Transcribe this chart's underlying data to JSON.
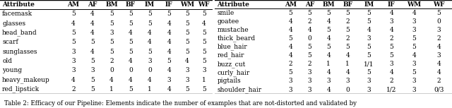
{
  "table1": {
    "columns": [
      "Attribute",
      "AM",
      "AF",
      "BM",
      "BF",
      "IM",
      "IF",
      "WM",
      "WF"
    ],
    "rows": [
      [
        "facemask",
        "5",
        "4",
        "5",
        "5",
        "5",
        "5",
        "5",
        "5"
      ],
      [
        "glasses",
        "4",
        "4",
        "5",
        "5",
        "5",
        "4",
        "5",
        "4"
      ],
      [
        "head_band",
        "5",
        "4",
        "3",
        "4",
        "4",
        "4",
        "5",
        "5"
      ],
      [
        "scarf",
        "5",
        "5",
        "5",
        "5",
        "4",
        "4",
        "5",
        "5"
      ],
      [
        "sunglasses",
        "3",
        "4",
        "5",
        "5",
        "5",
        "4",
        "5",
        "5"
      ],
      [
        "old",
        "3",
        "5",
        "2",
        "4",
        "3",
        "5",
        "4",
        "5"
      ],
      [
        "young",
        "3",
        "3",
        "0",
        "0",
        "0",
        "4",
        "3",
        "3"
      ],
      [
        "heavy_makeup",
        "4",
        "5",
        "4",
        "4",
        "4",
        "3",
        "3",
        "1"
      ],
      [
        "red_lipstick",
        "2",
        "5",
        "1",
        "5",
        "1",
        "4",
        "5",
        "5"
      ]
    ]
  },
  "table2": {
    "columns": [
      "Attribute",
      "AM",
      "AF",
      "BM",
      "BF",
      "IM",
      "IF",
      "WM",
      "WF"
    ],
    "rows": [
      [
        "smile",
        "5",
        "5",
        "5",
        "5",
        "5",
        "4",
        "4",
        "5"
      ],
      [
        "goatee",
        "4",
        "2",
        "4",
        "2",
        "5",
        "3",
        "3",
        "0"
      ],
      [
        "mustache",
        "4",
        "4",
        "5",
        "5",
        "4",
        "4",
        "3",
        "3"
      ],
      [
        "thick_beard",
        "5",
        "0",
        "4",
        "2",
        "3",
        "2",
        "5",
        "2"
      ],
      [
        "blue_hair",
        "4",
        "5",
        "5",
        "5",
        "5",
        "5",
        "5",
        "4"
      ],
      [
        "red_hair",
        "4",
        "5",
        "4",
        "4",
        "5",
        "5",
        "4",
        "3"
      ],
      [
        "buzz_cut",
        "2",
        "2",
        "1",
        "1",
        "1/1",
        "3",
        "3",
        "4"
      ],
      [
        "curly_hair",
        "5",
        "3",
        "4",
        "4",
        "5",
        "4",
        "5",
        "4"
      ],
      [
        "pigtails",
        "3",
        "3",
        "3",
        "3",
        "3",
        "2",
        "3",
        "2"
      ],
      [
        "shoulder_hair",
        "3",
        "3",
        "4",
        "0",
        "3",
        "1/2",
        "3",
        "0/3"
      ]
    ]
  },
  "caption": "Table 2: Efficacy of our Pipeline: Elements indicate the number of examples that are not-distorted and validated by",
  "font_size": 6.5,
  "header_font_size": 6.5,
  "caption_font_size": 6.2,
  "bg_color": "#ffffff",
  "text_color": "#000000",
  "figwidth": 6.4,
  "figheight": 1.53,
  "dpi": 100
}
